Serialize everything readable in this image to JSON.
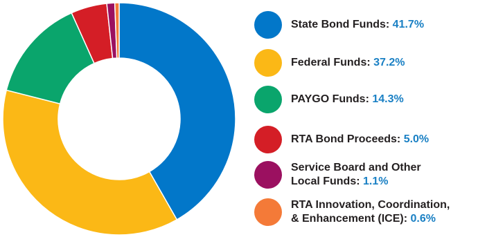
{
  "chart_data": {
    "type": "pie",
    "variant": "donut",
    "categories": [
      "State Bond Funds",
      "Federal Funds",
      "PAYGO Funds",
      "RTA Bond Proceeds",
      "Service Board and Other Local Funds",
      "RTA Innovation, Coordination, & Enhancement (ICE)"
    ],
    "values": [
      41.7,
      37.2,
      14.3,
      5.0,
      1.1,
      0.6
    ],
    "value_unit": "%",
    "colors": [
      "#0277c9",
      "#fbb816",
      "#0aa56c",
      "#d41e26",
      "#9b1060",
      "#f47a38"
    ],
    "legend_placement": "right",
    "legend": [
      {
        "line1": "State Bond Funds:",
        "line2": "",
        "pct": "41.7%",
        "color": "#0277c9"
      },
      {
        "line1": "Federal Funds:",
        "line2": "",
        "pct": "37.2%",
        "color": "#fbb816"
      },
      {
        "line1": "PAYGO Funds:",
        "line2": "",
        "pct": "14.3%",
        "color": "#0aa56c"
      },
      {
        "line1": "RTA Bond Proceeds:",
        "line2": "",
        "pct": "5.0%",
        "color": "#d41e26"
      },
      {
        "line1": "Service Board and Other",
        "line2": "Local Funds:",
        "pct": "1.1%",
        "color": "#9b1060"
      },
      {
        "line1": "RTA Innovation, Coordination,",
        "line2": "& Enhancement (ICE):",
        "pct": "0.6%",
        "color": "#f47a38"
      }
    ]
  }
}
